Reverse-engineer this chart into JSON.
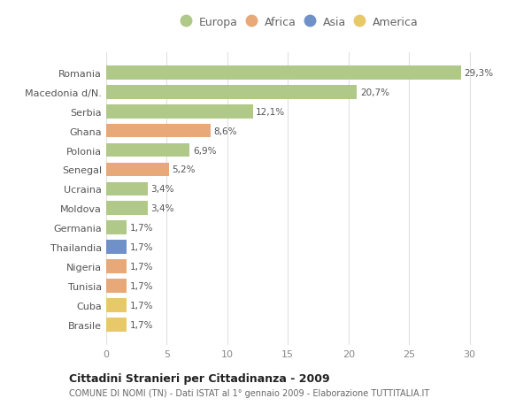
{
  "categories": [
    "Brasile",
    "Cuba",
    "Tunisia",
    "Nigeria",
    "Thailandia",
    "Germania",
    "Moldova",
    "Ucraina",
    "Senegal",
    "Polonia",
    "Ghana",
    "Serbia",
    "Macedonia d/N.",
    "Romania"
  ],
  "values": [
    1.7,
    1.7,
    1.7,
    1.7,
    1.7,
    1.7,
    3.4,
    3.4,
    5.2,
    6.9,
    8.6,
    12.1,
    20.7,
    29.3
  ],
  "colors": [
    "#e8c96a",
    "#e8c96a",
    "#e8a878",
    "#e8a878",
    "#7090c8",
    "#b0c888",
    "#b0c888",
    "#b0c888",
    "#e8a878",
    "#b0c888",
    "#e8a878",
    "#b0c888",
    "#b0c888",
    "#b0c888"
  ],
  "labels": [
    "1,7%",
    "1,7%",
    "1,7%",
    "1,7%",
    "1,7%",
    "1,7%",
    "3,4%",
    "3,4%",
    "5,2%",
    "6,9%",
    "8,6%",
    "12,1%",
    "20,7%",
    "29,3%"
  ],
  "legend_labels": [
    "Europa",
    "Africa",
    "Asia",
    "America"
  ],
  "legend_colors": [
    "#b0c888",
    "#e8a878",
    "#7090c8",
    "#e8c96a"
  ],
  "title": "Cittadini Stranieri per Cittadinanza - 2009",
  "subtitle": "COMUNE DI NOMI (TN) - Dati ISTAT al 1° gennaio 2009 - Elaborazione TUTTITALIA.IT",
  "xlim": [
    0,
    32
  ],
  "xticks": [
    0,
    5,
    10,
    15,
    20,
    25,
    30
  ],
  "background_color": "#ffffff",
  "grid_color": "#e0e0e0",
  "bar_height": 0.72
}
